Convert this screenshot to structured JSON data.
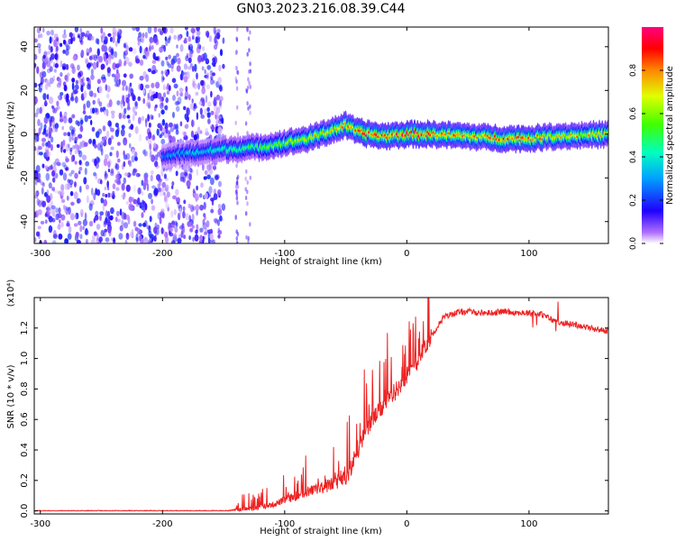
{
  "title": "GN03.2023.216.08.39.C44",
  "chart_data": [
    {
      "type": "heatmap",
      "xlabel": "Height of straight line (km)",
      "ylabel": "Frequency (Hz)",
      "xlim": [
        -305,
        165
      ],
      "ylim": [
        -50,
        49
      ],
      "x_ticks": [
        -300,
        -200,
        -100,
        0,
        100
      ],
      "x_tick_labels": [
        "-300",
        "-200",
        "-100",
        "0",
        "100"
      ],
      "y_ticks": [
        -40,
        -20,
        0,
        20,
        40
      ],
      "y_tick_labels": [
        "-40",
        "-20",
        "0",
        "20",
        "40"
      ],
      "colorbar": {
        "label": "Normalized spectral amplitude",
        "range": [
          0,
          1
        ],
        "ticks": [
          0.0,
          0.2,
          0.4,
          0.6,
          0.8
        ],
        "tick_labels": [
          "0.0",
          "0.2",
          "0.4",
          "0.6",
          "0.8"
        ],
        "colormap": [
          "#ffffff",
          "#7a00ff",
          "#0000ff",
          "#00c8ff",
          "#00ff64",
          "#c8ff00",
          "#ffaa00",
          "#ff0000",
          "#ff0078"
        ]
      },
      "noise_region": {
        "x_range": [
          -305,
          -150
        ],
        "extra_strips": [
          [
            -140,
            -138
          ],
          [
            -132,
            -128
          ]
        ]
      },
      "ridge": {
        "description_points_x": [
          -200,
          -150,
          -120,
          -100,
          -80,
          -60,
          -50,
          -40,
          -20,
          0,
          20,
          50,
          80,
          100,
          120,
          165
        ],
        "center_freq_y": [
          -10,
          -7,
          -6,
          -4,
          -2,
          2,
          4,
          1,
          -1,
          0,
          0,
          -1,
          -2,
          -2,
          -1,
          0
        ],
        "peak_amplitude": [
          0.3,
          0.45,
          0.55,
          0.65,
          0.72,
          0.8,
          0.82,
          0.95,
          0.85,
          0.95,
          0.92,
          0.8,
          0.9,
          0.85,
          0.8,
          0.75
        ]
      }
    },
    {
      "type": "line",
      "xlabel": "Height of straight line (km)",
      "ylabel": "SNR (10 * v/v)",
      "y_scale_label": "(x10⁴)",
      "xlim": [
        -305,
        165
      ],
      "ylim": [
        -0.02,
        1.4
      ],
      "x_ticks": [
        -300,
        -200,
        -100,
        0,
        100
      ],
      "x_tick_labels": [
        "-300",
        "-200",
        "-100",
        "0",
        "100"
      ],
      "y_ticks": [
        0.0,
        0.2,
        0.4,
        0.6,
        0.8,
        1.0,
        1.2
      ],
      "y_tick_labels": [
        "0.0",
        "0.2",
        "0.4",
        "0.6",
        "0.8",
        "1.0",
        "1.2"
      ],
      "color": "#ee2222",
      "series": [
        {
          "x": [
            -305,
            -250,
            -200,
            -150,
            -135,
            -125,
            -110,
            -100,
            -90,
            -80,
            -70,
            -60,
            -50,
            -45,
            -40,
            -35,
            -30,
            -20,
            -10,
            0,
            10,
            20,
            30,
            40,
            50,
            60,
            70,
            80,
            90,
            100,
            110,
            120,
            130,
            140,
            150,
            165
          ],
          "values": [
            0.0,
            0.0,
            0.0,
            0.0,
            0.01,
            0.02,
            0.04,
            0.07,
            0.1,
            0.13,
            0.15,
            0.18,
            0.22,
            0.3,
            0.4,
            0.5,
            0.58,
            0.68,
            0.78,
            0.88,
            1.0,
            1.15,
            1.27,
            1.3,
            1.31,
            1.3,
            1.3,
            1.31,
            1.3,
            1.3,
            1.29,
            1.25,
            1.23,
            1.22,
            1.2,
            1.18
          ]
        }
      ]
    }
  ]
}
